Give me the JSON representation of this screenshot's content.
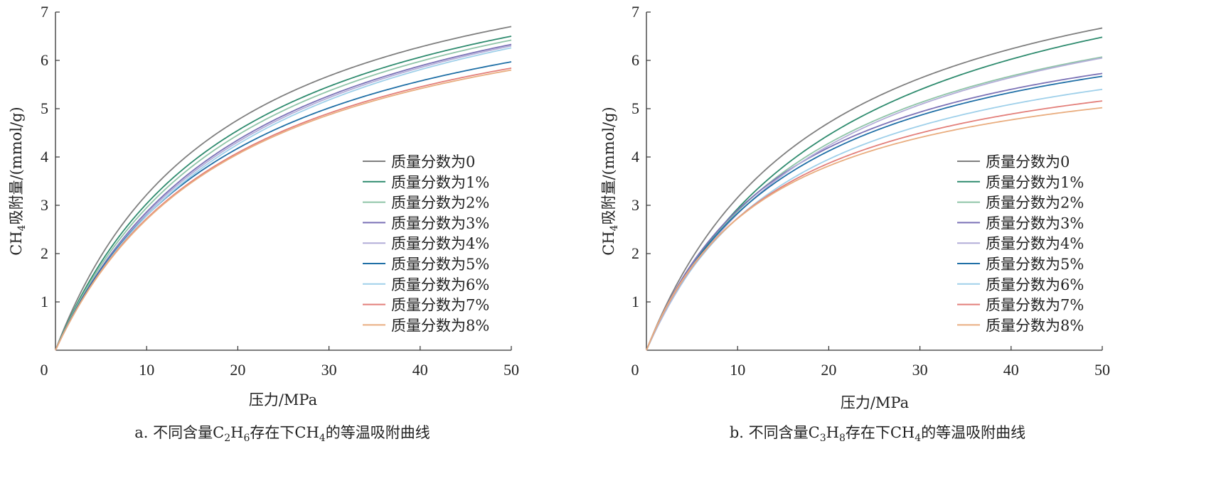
{
  "chart_data": [
    {
      "type": "line",
      "caption": {
        "parts": [
          {
            "t": "a. 不同含量C"
          },
          {
            "t": "2",
            "sub": true
          },
          {
            "t": "H"
          },
          {
            "t": "6",
            "sub": true
          },
          {
            "t": "存在下CH"
          },
          {
            "t": "4",
            "sub": true
          },
          {
            "t": "的等温吸附曲线"
          }
        ]
      },
      "xlabel": "压力/MPa",
      "ylabel": {
        "parts": [
          {
            "t": "CH"
          },
          {
            "t": "4",
            "sub": true
          },
          {
            "t": "吸附量/(mmol/g)"
          }
        ]
      },
      "xlim": [
        0,
        50
      ],
      "ylim": [
        0,
        7
      ],
      "xticks": [
        "0",
        "10",
        "20",
        "30",
        "40",
        "50"
      ],
      "yticks": [
        "1",
        "2",
        "3",
        "4",
        "5",
        "6",
        "7"
      ],
      "legend_position": "right",
      "series": [
        {
          "name": "质量分数为0",
          "color": "#7f7f7f",
          "y50": 6.7,
          "k": 0.054
        },
        {
          "name": "质量分数为1%",
          "color": "#2e8b6e",
          "y50": 6.5,
          "k": 0.05
        },
        {
          "name": "质量分数为2%",
          "color": "#8fc4a8",
          "y50": 6.42,
          "k": 0.048
        },
        {
          "name": "质量分数为3%",
          "color": "#7b72b6",
          "y50": 6.33,
          "k": 0.046
        },
        {
          "name": "质量分数为4%",
          "color": "#b3aed8",
          "y50": 6.3,
          "k": 0.045
        },
        {
          "name": "质量分数为5%",
          "color": "#1f6fa6",
          "y50": 5.97,
          "k": 0.05
        },
        {
          "name": "质量分数为6%",
          "color": "#9fd0ea",
          "y50": 6.26,
          "k": 0.044
        },
        {
          "name": "质量分数为7%",
          "color": "#e37f7a",
          "y50": 5.84,
          "k": 0.05
        },
        {
          "name": "质量分数为8%",
          "color": "#e9ad7f",
          "y50": 5.8,
          "k": 0.05
        }
      ]
    },
    {
      "type": "line",
      "caption": {
        "parts": [
          {
            "t": "b. 不同含量C"
          },
          {
            "t": "3",
            "sub": true
          },
          {
            "t": "H"
          },
          {
            "t": "8",
            "sub": true
          },
          {
            "t": "存在下CH"
          },
          {
            "t": "4",
            "sub": true
          },
          {
            "t": "的等温吸附曲线"
          }
        ]
      },
      "xlabel": "压力/MPa",
      "ylabel": {
        "parts": [
          {
            "t": "CH"
          },
          {
            "t": "4",
            "sub": true
          },
          {
            "t": "吸附量/(mmol/g)"
          }
        ]
      },
      "xlim": [
        0,
        50
      ],
      "ylim": [
        0,
        7
      ],
      "xticks": [
        "0",
        "10",
        "20",
        "30",
        "40",
        "50"
      ],
      "yticks": [
        "1",
        "2",
        "3",
        "4",
        "5",
        "6",
        "7"
      ],
      "legend_position": "right",
      "series": [
        {
          "name": "质量分数为0",
          "color": "#7f7f7f",
          "y50": 6.67,
          "k": 0.052
        },
        {
          "name": "质量分数为1%",
          "color": "#2e8b6e",
          "y50": 6.48,
          "k": 0.046
        },
        {
          "name": "质量分数为2%",
          "color": "#8fc4a8",
          "y50": 6.07,
          "k": 0.052
        },
        {
          "name": "质量分数为3%",
          "color": "#7b72b6",
          "y50": 5.73,
          "k": 0.062
        },
        {
          "name": "质量分数为4%",
          "color": "#b3aed8",
          "y50": 6.05,
          "k": 0.05
        },
        {
          "name": "质量分数为5%",
          "color": "#1f6fa6",
          "y50": 5.67,
          "k": 0.06
        },
        {
          "name": "质量分数为6%",
          "color": "#9fd0ea",
          "y50": 5.4,
          "k": 0.062
        },
        {
          "name": "质量分数为7%",
          "color": "#e37f7a",
          "y50": 5.16,
          "k": 0.07
        },
        {
          "name": "质量分数为8%",
          "color": "#e9ad7f",
          "y50": 5.02,
          "k": 0.075
        }
      ]
    }
  ]
}
